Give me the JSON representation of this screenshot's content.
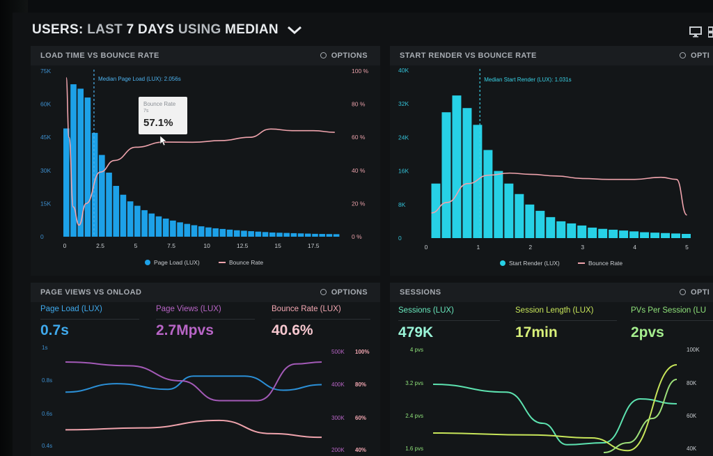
{
  "header": {
    "title_prefix": "USERS:",
    "title_range": "LAST",
    "title_days": "7 DAYS",
    "title_using": "USING",
    "title_median": "MEDIAN"
  },
  "colors": {
    "blue_bar": "#1da1e8",
    "cyan_bar": "#27d1e6",
    "pink_line": "#f0a4ad",
    "purple_line": "#c06ad2",
    "green_line": "#5de3b0",
    "yellow_line": "#c8e65a",
    "teal_text": "#7ff0d0"
  },
  "panels": {
    "load_time": {
      "title": "LOAD TIME VS BOUNCE RATE",
      "options": "OPTIONS",
      "median_label": "Median Page Load (LUX): 2.056s",
      "tooltip": {
        "title": "Bounce Rate",
        "sub": "7s",
        "value": "57.1%"
      },
      "legend": [
        "Page Load (LUX)",
        "Bounce Rate"
      ]
    },
    "start_render": {
      "title": "START RENDER VS BOUNCE RATE",
      "options": "OPTI",
      "median_label": "Median Start Render (LUX): 1.031s",
      "legend": [
        "Start Render (LUX)",
        "Bounce Rate"
      ]
    },
    "page_views": {
      "title": "PAGE VIEWS VS ONLOAD",
      "options": "OPTIONS",
      "metrics": [
        {
          "label": "Page Load (LUX)",
          "value": "0.7s"
        },
        {
          "label": "Page Views (LUX)",
          "value": "2.7Mpvs"
        },
        {
          "label": "Bounce Rate (LUX)",
          "value": "40.6%"
        }
      ]
    },
    "sessions": {
      "title": "SESSIONS",
      "options": "OPTI",
      "metrics": [
        {
          "label": "Sessions (LUX)",
          "value": "479K"
        },
        {
          "label": "Session Length (LUX)",
          "value": "17min"
        },
        {
          "label": "PVs Per Session (LU",
          "value": "2pvs"
        }
      ]
    }
  },
  "chart_data": [
    {
      "type": "bar",
      "id": "load_time",
      "xlabel": "",
      "ylabel": "",
      "x_ticks": [
        "0",
        "2.5",
        "5",
        "7.5",
        "10",
        "12.5",
        "15",
        "17.5"
      ],
      "y_ticks_left": [
        "0",
        "15K",
        "30K",
        "45K",
        "60K",
        "75K"
      ],
      "y_ticks_right": [
        "0 %",
        "20 %",
        "40 %",
        "60 %",
        "80 %",
        "100 %"
      ],
      "xlim": [
        0,
        19.5
      ],
      "ylim": [
        0,
        75000
      ],
      "y2lim": [
        0,
        100
      ],
      "median_x": 2.056,
      "series": [
        {
          "name": "Page Load (LUX)",
          "kind": "bar",
          "bin_width": 0.5,
          "values": [
            49000,
            69000,
            67000,
            63000,
            47000,
            37000,
            29000,
            23000,
            19000,
            16000,
            14000,
            12000,
            10500,
            9200,
            8200,
            7300,
            6500,
            5800,
            5200,
            4700,
            4200,
            3800,
            3500,
            3200,
            2900,
            2700,
            2500,
            2300,
            2100,
            1900,
            1800,
            1700,
            1600,
            1500,
            1400,
            1300,
            1250,
            1200,
            1150
          ]
        },
        {
          "name": "Bounce Rate",
          "kind": "line",
          "points": [
            [
              0.1,
              96
            ],
            [
              0.3,
              60
            ],
            [
              0.6,
              18
            ],
            [
              1.0,
              7
            ],
            [
              1.5,
              20
            ],
            [
              2.5,
              39
            ],
            [
              3.5,
              46
            ],
            [
              5,
              54
            ],
            [
              7,
              57.1
            ],
            [
              9,
              57
            ],
            [
              11,
              58
            ],
            [
              13,
              60
            ],
            [
              14.5,
              65
            ],
            [
              16,
              64
            ],
            [
              17.5,
              64
            ],
            [
              19,
              63
            ]
          ]
        }
      ]
    },
    {
      "type": "bar",
      "id": "start_render",
      "xlabel": "",
      "ylabel": "",
      "x_ticks": [
        "0",
        "1",
        "2",
        "3",
        "4",
        "5"
      ],
      "y_ticks_left": [
        "0",
        "8K",
        "16K",
        "24K",
        "32K",
        "40K"
      ],
      "xlim": [
        0,
        5.1
      ],
      "ylim": [
        0,
        40000
      ],
      "median_x": 1.031,
      "series": [
        {
          "name": "Start Render (LUX)",
          "kind": "bar",
          "bin_width": 0.2,
          "values": [
            13000,
            30000,
            34000,
            31000,
            27000,
            21000,
            16000,
            13000,
            10500,
            8000,
            6500,
            5000,
            4000,
            3500,
            3000,
            2500,
            2200,
            2000,
            1800,
            1600,
            1400,
            1300,
            1200,
            1100,
            1000
          ]
        },
        {
          "name": "Bounce Rate",
          "kind": "line",
          "points": [
            [
              0.1,
              6000
            ],
            [
              0.4,
              8500
            ],
            [
              0.8,
              13000
            ],
            [
              1.2,
              15000
            ],
            [
              1.6,
              15500
            ],
            [
              2.0,
              15200
            ],
            [
              2.5,
              14800
            ],
            [
              3.0,
              14200
            ],
            [
              3.5,
              14000
            ],
            [
              4.0,
              14000
            ],
            [
              4.5,
              14500
            ],
            [
              4.8,
              14000
            ],
            [
              5.0,
              5500
            ]
          ]
        }
      ]
    },
    {
      "type": "line",
      "id": "page_views",
      "y_ticks_left": [
        "0.4s",
        "0.6s",
        "0.8s",
        "1s"
      ],
      "y_ticks_mid": [
        "200K",
        "300K",
        "400K",
        "500K"
      ],
      "y_ticks_right": [
        "40%",
        "60%",
        "80%",
        "100%"
      ],
      "series": [
        {
          "name": "Page Load (LUX)",
          "points": [
            [
              0,
              0.56
            ],
            [
              0.2,
              0.65
            ],
            [
              0.4,
              0.59
            ],
            [
              0.5,
              0.73
            ],
            [
              0.7,
              0.73
            ],
            [
              0.85,
              0.58
            ],
            [
              1,
              0.64
            ]
          ]
        },
        {
          "name": "Page Views (LUX)",
          "points": [
            [
              0,
              0.88
            ],
            [
              0.25,
              0.84
            ],
            [
              0.45,
              0.68
            ],
            [
              0.6,
              0.47
            ],
            [
              0.75,
              0.47
            ],
            [
              0.9,
              0.86
            ],
            [
              1,
              0.88
            ]
          ]
        },
        {
          "name": "Bounce Rate (LUX)",
          "points": [
            [
              0,
              0.16
            ],
            [
              0.3,
              0.18
            ],
            [
              0.6,
              0.26
            ],
            [
              0.8,
              0.12
            ],
            [
              1,
              0.08
            ]
          ]
        }
      ]
    },
    {
      "type": "line",
      "id": "sessions",
      "y_ticks_left": [
        "1.6 pvs",
        "2.4 pvs",
        "3.2 pvs",
        "4 pvs"
      ],
      "y_ticks_right": [
        "40K",
        "60K",
        "80K",
        "100K"
      ],
      "series": [
        {
          "name": "Sessions (LUX)",
          "points": [
            [
              0,
              0.7
            ],
            [
              0.3,
              0.62
            ],
            [
              0.45,
              0.3
            ],
            [
              0.55,
              0.08
            ],
            [
              0.7,
              0.1
            ],
            [
              0.85,
              0.55
            ],
            [
              1,
              0.5
            ]
          ]
        },
        {
          "name": "Session Length (LUX)",
          "points": [
            [
              0,
              0.2
            ],
            [
              0.4,
              0.18
            ],
            [
              0.65,
              0.15
            ],
            [
              0.8,
              0.02
            ],
            [
              1,
              0.9
            ]
          ]
        },
        {
          "name": "PVs Per Session (LUX)",
          "points": [
            [
              0.7,
              0.0
            ],
            [
              0.8,
              0.1
            ],
            [
              0.9,
              0.35
            ],
            [
              1,
              0.75
            ]
          ]
        }
      ]
    }
  ]
}
